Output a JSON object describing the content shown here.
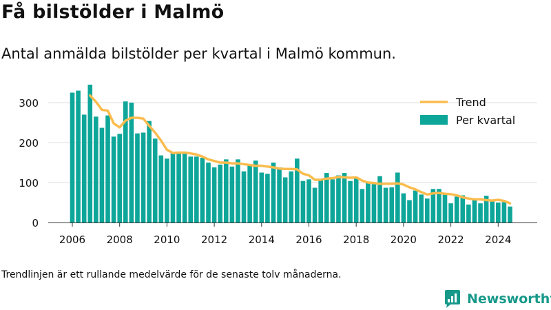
{
  "title": "Få bilstölder i Malmö",
  "subtitle": "Antal anmälda bilstölder per kvartal i Malmö kommun.",
  "footnote": "Trendlinjen är ett rullande medelvärde för de senaste tolv månaderna.",
  "brand": "Newsworthy",
  "colors": {
    "bar": "#0fa69a",
    "trend": "#fbbc4d",
    "grid": "#dddddd",
    "text": "#111111",
    "brand": "#17998a"
  },
  "chart_data": {
    "type": "bar",
    "title": "Få bilstölder i Malmö",
    "subtitle": "Antal anmälda bilstölder per kvartal i Malmö kommun.",
    "xlim": [
      2006,
      2024.75
    ],
    "ylim": [
      0,
      350
    ],
    "yticks": [
      0,
      100,
      200,
      300
    ],
    "xticks": [
      2006,
      2008,
      2010,
      2012,
      2014,
      2016,
      2018,
      2020,
      2022,
      2024
    ],
    "grid": "horizontal",
    "legend_position": "top-right",
    "x": [
      2006.0,
      2006.25,
      2006.5,
      2006.75,
      2007.0,
      2007.25,
      2007.5,
      2007.75,
      2008.0,
      2008.25,
      2008.5,
      2008.75,
      2009.0,
      2009.25,
      2009.5,
      2009.75,
      2010.0,
      2010.25,
      2010.5,
      2010.75,
      2011.0,
      2011.25,
      2011.5,
      2011.75,
      2012.0,
      2012.25,
      2012.5,
      2012.75,
      2013.0,
      2013.25,
      2013.5,
      2013.75,
      2014.0,
      2014.25,
      2014.5,
      2014.75,
      2015.0,
      2015.25,
      2015.5,
      2015.75,
      2016.0,
      2016.25,
      2016.5,
      2016.75,
      2017.0,
      2017.25,
      2017.5,
      2017.75,
      2018.0,
      2018.25,
      2018.5,
      2018.75,
      2019.0,
      2019.25,
      2019.5,
      2019.75,
      2020.0,
      2020.25,
      2020.5,
      2020.75,
      2021.0,
      2021.25,
      2021.5,
      2021.75,
      2022.0,
      2022.25,
      2022.5,
      2022.75,
      2023.0,
      2023.25,
      2023.5,
      2023.75,
      2024.0,
      2024.25,
      2024.5
    ],
    "series": [
      {
        "name": "Per kvartal",
        "type": "bar",
        "values": [
          325,
          330,
          270,
          345,
          265,
          237,
          268,
          215,
          222,
          303,
          300,
          223,
          225,
          254,
          210,
          168,
          160,
          175,
          177,
          177,
          165,
          165,
          162,
          150,
          138,
          145,
          158,
          140,
          158,
          128,
          143,
          155,
          125,
          122,
          150,
          138,
          113,
          128,
          160,
          104,
          108,
          87,
          108,
          124,
          108,
          118,
          124,
          104,
          110,
          84,
          100,
          96,
          116,
          87,
          88,
          125,
          73,
          56,
          80,
          70,
          60,
          84,
          84,
          70,
          48,
          65,
          68,
          45,
          58,
          48,
          67,
          56,
          50,
          51,
          40
        ]
      },
      {
        "name": "Trend",
        "type": "line",
        "x": [
          2006.75,
          2007.0,
          2007.25,
          2007.5,
          2007.75,
          2008.0,
          2008.25,
          2008.5,
          2008.75,
          2009.0,
          2009.25,
          2009.5,
          2009.75,
          2010.0,
          2010.25,
          2010.5,
          2010.75,
          2011.0,
          2011.25,
          2011.5,
          2011.75,
          2012.0,
          2012.25,
          2012.5,
          2012.75,
          2013.0,
          2013.25,
          2013.5,
          2013.75,
          2014.0,
          2014.25,
          2014.5,
          2014.75,
          2015.0,
          2015.25,
          2015.5,
          2015.75,
          2016.0,
          2016.25,
          2016.5,
          2016.75,
          2017.0,
          2017.25,
          2017.5,
          2017.75,
          2018.0,
          2018.25,
          2018.5,
          2018.75,
          2019.0,
          2019.25,
          2019.5,
          2019.75,
          2020.0,
          2020.25,
          2020.5,
          2020.75,
          2021.0,
          2021.25,
          2021.5,
          2021.75,
          2022.0,
          2022.25,
          2022.5,
          2022.75,
          2023.0,
          2023.25,
          2023.5,
          2023.75,
          2024.0,
          2024.25,
          2024.5
        ],
        "values": [
          318,
          302,
          282,
          280,
          248,
          238,
          255,
          262,
          262,
          260,
          242,
          225,
          205,
          182,
          174,
          175,
          175,
          173,
          170,
          165,
          158,
          154,
          150,
          150,
          148,
          148,
          146,
          144,
          142,
          142,
          140,
          138,
          135,
          134,
          134,
          133,
          122,
          118,
          107,
          107,
          110,
          111,
          114,
          113,
          112,
          113,
          105,
          100,
          99,
          97,
          97,
          97,
          98,
          95,
          88,
          83,
          76,
          70,
          73,
          74,
          72,
          71,
          68,
          63,
          60,
          58,
          58,
          56,
          55,
          57,
          54,
          48
        ]
      }
    ]
  }
}
